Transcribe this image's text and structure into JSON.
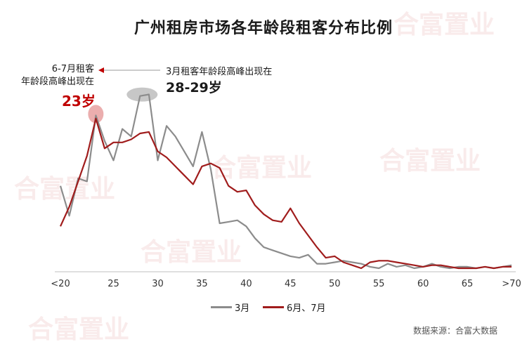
{
  "title": "广州租房市场各年龄段租客分布比例",
  "source": "数据来源：合富大数据",
  "watermark": "合富置业",
  "annotations": {
    "peak_67_text": "6-7月租客年龄段高峰出现在",
    "peak_67_line1": "6-7月租客",
    "peak_67_line2": "年龄段高峰出现在",
    "peak_67_value": "23岁",
    "peak_3_text": "3月租客年龄段高峰出现在",
    "peak_3_value": "28-29岁"
  },
  "colors": {
    "march": "#8c8c8c",
    "junjul": "#a01c1c",
    "highlight_red": "#e8a0a0",
    "highlight_gray": "#bdbdbd"
  },
  "chart_data": {
    "type": "line",
    "title": "广州租房市场各年龄段租客分布比例",
    "xlabel": "",
    "ylabel": "",
    "x_ticks": [
      "<20",
      "25",
      "30",
      "35",
      "40",
      "45",
      "50",
      "55",
      "60",
      "65",
      ">70"
    ],
    "x": [
      "<20",
      "20",
      "21",
      "22",
      "23",
      "24",
      "25",
      "26",
      "27",
      "28",
      "29",
      "30",
      "31",
      "32",
      "33",
      "34",
      "35",
      "36",
      "37",
      "38",
      "39",
      "40",
      "41",
      "42",
      "43",
      "44",
      "45",
      "46",
      "47",
      "48",
      "49",
      "50",
      "51",
      "52",
      "53",
      "54",
      "55",
      "56",
      "57",
      "58",
      "59",
      "60",
      "61",
      "62",
      "63",
      "64",
      "65",
      "66",
      "67",
      "68",
      "69",
      ">70"
    ],
    "grid": false,
    "legend": "bottom-center",
    "series": [
      {
        "name": "3月",
        "values": [
          0.55,
          0.35,
          0.6,
          0.58,
          1.02,
          0.85,
          0.72,
          0.93,
          0.88,
          1.15,
          1.16,
          0.72,
          0.95,
          0.88,
          0.78,
          0.68,
          0.91,
          0.66,
          0.3,
          0.31,
          0.32,
          0.28,
          0.2,
          0.14,
          0.12,
          0.1,
          0.08,
          0.07,
          0.09,
          0.03,
          0.03,
          0.04,
          0.05,
          0.04,
          0.03,
          0.01,
          0.0,
          0.03,
          0.01,
          0.02,
          0.0,
          0.01,
          0.03,
          0.01,
          0.0,
          0.01,
          0.01,
          0.0,
          0.01,
          0.0,
          0.01,
          0.02
        ]
      },
      {
        "name": "6月、7月",
        "values": [
          0.28,
          0.41,
          0.58,
          0.75,
          1.0,
          0.8,
          0.84,
          0.84,
          0.86,
          0.9,
          0.91,
          0.78,
          0.74,
          0.68,
          0.62,
          0.56,
          0.68,
          0.7,
          0.67,
          0.55,
          0.51,
          0.52,
          0.42,
          0.36,
          0.32,
          0.31,
          0.4,
          0.3,
          0.22,
          0.14,
          0.07,
          0.08,
          0.04,
          0.02,
          0.0,
          0.04,
          0.05,
          0.05,
          0.04,
          0.03,
          0.02,
          0.01,
          0.02,
          0.02,
          0.01,
          0.0,
          0.0,
          0.0,
          0.01,
          0.0,
          0.01,
          0.01
        ]
      }
    ]
  }
}
